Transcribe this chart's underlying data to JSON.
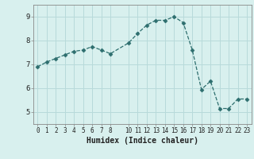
{
  "x": [
    0,
    1,
    2,
    3,
    4,
    5,
    6,
    7,
    8,
    10,
    11,
    12,
    13,
    14,
    15,
    16,
    17,
    18,
    19,
    20,
    21,
    22,
    23
  ],
  "y": [
    6.9,
    7.1,
    7.25,
    7.4,
    7.55,
    7.6,
    7.75,
    7.6,
    7.45,
    7.9,
    8.3,
    8.65,
    8.85,
    8.85,
    9.0,
    8.75,
    7.6,
    5.95,
    6.3,
    5.15,
    5.15,
    5.55,
    5.55
  ],
  "line_color": "#2d6e6e",
  "marker": "D",
  "marker_size": 2.5,
  "bg_color": "#d8f0ee",
  "grid_color": "#b8dada",
  "xlabel": "Humidex (Indice chaleur)",
  "xlim": [
    -0.5,
    23.5
  ],
  "ylim": [
    4.5,
    9.5
  ],
  "yticks": [
    5,
    6,
    7,
    8,
    9
  ],
  "xticks": [
    0,
    1,
    2,
    3,
    4,
    5,
    6,
    7,
    8,
    10,
    11,
    12,
    13,
    14,
    15,
    16,
    17,
    18,
    19,
    20,
    21,
    22,
    23
  ],
  "xtick_labels": [
    "0",
    "1",
    "2",
    "3",
    "4",
    "5",
    "6",
    "7",
    "8",
    "10",
    "11",
    "12",
    "13",
    "14",
    "15",
    "16",
    "17",
    "18",
    "19",
    "20",
    "21",
    "22",
    "23"
  ]
}
